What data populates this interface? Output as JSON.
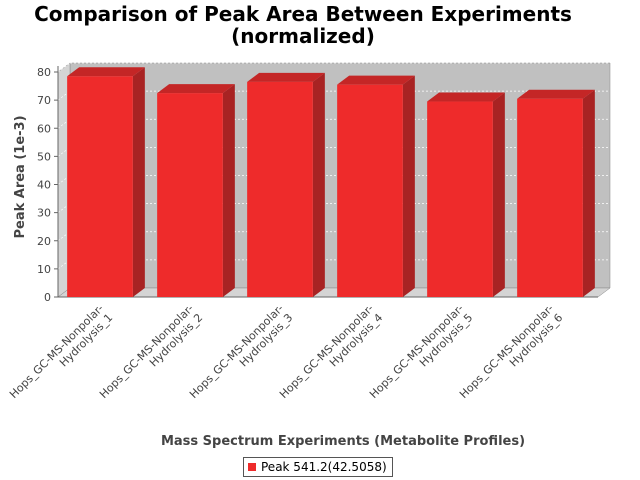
{
  "chart_data": {
    "type": "bar",
    "title": "Comparison of Peak Area Between Experiments\n(normalized)",
    "title_lines": [
      "Comparison of Peak Area Between Experiments",
      "(normalized)"
    ],
    "xlabel": "Mass Spectrum Experiments (Metabolite Profiles)",
    "ylabel": "Peak Area (1e-3)",
    "categories": [
      "Hops_GC-MS-Nonpolar-Hydrolysis_1",
      "Hops_GC-MS-Nonpolar-Hydrolysis_2",
      "Hops_GC-MS-Nonpolar-Hydrolysis_3",
      "Hops_GC-MS-Nonpolar-Hydrolysis_4",
      "Hops_GC-MS-Nonpolar-Hydrolysis_5",
      "Hops_GC-MS-Nonpolar-Hydrolysis_6"
    ],
    "category_label_lines": [
      [
        "Hops_GC-MS-Nonpolar-",
        "Hydrolysis_1"
      ],
      [
        "Hops_GC-MS-Nonpolar-",
        "Hydrolysis_2"
      ],
      [
        "Hops_GC-MS-Nonpolar-",
        "Hydrolysis_3"
      ],
      [
        "Hops_GC-MS-Nonpolar-",
        "Hydrolysis_4"
      ],
      [
        "Hops_GC-MS-Nonpolar-",
        "Hydrolysis_5"
      ],
      [
        "Hops_GC-MS-Nonpolar-",
        "Hydrolysis_6"
      ]
    ],
    "series": [
      {
        "name": "Peak 541.2(42.5058)",
        "values": [
          78.5,
          72.5,
          76.5,
          75.5,
          69.5,
          70.5
        ],
        "color": "#ee2b2b"
      }
    ],
    "ylim": [
      0,
      80
    ],
    "yticks": [
      0,
      10,
      20,
      30,
      40,
      50,
      60,
      70,
      80
    ],
    "grid": true,
    "style": "3d",
    "legend_position": "bottom",
    "plot_background": "#c0c0c0"
  }
}
